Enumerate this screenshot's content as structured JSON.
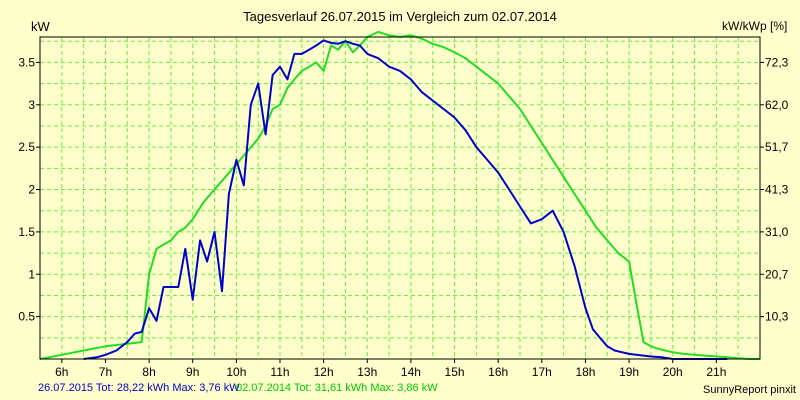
{
  "header": {
    "title": "Tagesverlauf 26.07.2015 im Vergleich zum 02.07.2014",
    "y_left_unit": "kW",
    "y_right_unit": "kW/kWp [%]"
  },
  "footer": {
    "series1_summary": "26.07.2015 Tot: 28,22 kWh Max: 3,76 kW",
    "series2_summary": "02.07.2014 Tot: 31,61 kWh Max: 3,86 kW",
    "brand": "SunnyReport pinxit"
  },
  "colors": {
    "background": "#ffffcc",
    "grid": "#66ee44",
    "series1": "#0000cc",
    "series2": "#22dd22"
  },
  "chart_data": {
    "type": "line",
    "title": "Tagesverlauf 26.07.2015 im Vergleich zum 02.07.2014",
    "ylabel": "kW",
    "y2label": "kW/kWp [%]",
    "xlim": [
      5.5,
      22.0
    ],
    "ylim": [
      0,
      3.8
    ],
    "x_ticks": [
      6,
      7,
      8,
      9,
      10,
      11,
      12,
      13,
      14,
      15,
      16,
      17,
      18,
      19,
      20,
      21
    ],
    "x_tick_labels": [
      "6h",
      "7h",
      "8h",
      "9h",
      "10h",
      "11h",
      "12h",
      "13h",
      "14h",
      "15h",
      "16h",
      "17h",
      "18h",
      "19h",
      "20h",
      "21h"
    ],
    "y_ticks": [
      0.5,
      1,
      1.5,
      2,
      2.5,
      3,
      3.5
    ],
    "y_tick_labels": [
      "0.5",
      "1",
      "1.5",
      "2",
      "2.5",
      "3",
      "3.5"
    ],
    "y2_ticks": [
      0.5,
      1,
      1.5,
      2,
      2.5,
      3,
      3.5
    ],
    "y2_tick_labels": [
      "10,3",
      "20,7",
      "31,0",
      "41,3",
      "51,7",
      "62,0",
      "72,3"
    ],
    "grid": true,
    "series": [
      {
        "name": "26.07.2015",
        "x": [
          6.5,
          6.8,
          7.0,
          7.25,
          7.5,
          7.67,
          7.83,
          8.0,
          8.17,
          8.33,
          8.5,
          8.67,
          8.83,
          9.0,
          9.17,
          9.33,
          9.5,
          9.67,
          9.83,
          10.0,
          10.17,
          10.33,
          10.5,
          10.67,
          10.83,
          11.0,
          11.17,
          11.33,
          11.5,
          11.67,
          11.83,
          12.0,
          12.17,
          12.33,
          12.5,
          12.67,
          12.83,
          13.0,
          13.25,
          13.5,
          13.75,
          14.0,
          14.25,
          14.5,
          14.75,
          15.0,
          15.25,
          15.5,
          15.75,
          16.0,
          16.25,
          16.5,
          16.75,
          17.0,
          17.25,
          17.5,
          17.75,
          18.0,
          18.17,
          18.33,
          18.5,
          18.67,
          18.83,
          19.0,
          19.17,
          19.33,
          19.5,
          19.75,
          20.0,
          20.25,
          20.5,
          20.75,
          21.0,
          21.25
        ],
        "y": [
          0.0,
          0.02,
          0.05,
          0.1,
          0.2,
          0.3,
          0.32,
          0.6,
          0.45,
          0.85,
          0.85,
          0.85,
          1.3,
          0.7,
          1.4,
          1.15,
          1.5,
          0.8,
          1.95,
          2.35,
          2.05,
          3.0,
          3.25,
          2.65,
          3.35,
          3.45,
          3.3,
          3.6,
          3.6,
          3.65,
          3.7,
          3.76,
          3.73,
          3.72,
          3.75,
          3.72,
          3.7,
          3.6,
          3.55,
          3.45,
          3.4,
          3.3,
          3.15,
          3.05,
          2.95,
          2.85,
          2.7,
          2.5,
          2.35,
          2.2,
          2.0,
          1.8,
          1.6,
          1.65,
          1.75,
          1.5,
          1.1,
          0.6,
          0.35,
          0.25,
          0.15,
          0.1,
          0.08,
          0.06,
          0.05,
          0.04,
          0.03,
          0.02,
          0.0,
          0.0,
          0.0,
          0.0,
          0.0,
          0.0
        ]
      },
      {
        "name": "02.07.2014",
        "x": [
          5.5,
          6.0,
          6.5,
          7.0,
          7.5,
          7.83,
          8.0,
          8.17,
          8.33,
          8.5,
          8.67,
          8.83,
          9.0,
          9.25,
          9.5,
          9.75,
          10.0,
          10.25,
          10.5,
          10.67,
          10.83,
          11.0,
          11.17,
          11.33,
          11.5,
          11.67,
          11.83,
          12.0,
          12.17,
          12.33,
          12.5,
          12.67,
          12.83,
          13.0,
          13.25,
          13.5,
          13.75,
          14.0,
          14.25,
          14.5,
          14.75,
          15.0,
          15.25,
          15.5,
          15.75,
          16.0,
          16.25,
          16.5,
          16.75,
          17.0,
          17.25,
          17.5,
          17.75,
          18.0,
          18.25,
          18.5,
          18.75,
          19.0,
          19.17,
          19.33,
          19.5,
          19.67,
          19.83,
          20.0,
          20.25,
          20.5,
          20.75,
          21.0,
          21.25,
          21.5,
          21.75,
          22.0
        ],
        "y": [
          0.0,
          0.05,
          0.1,
          0.15,
          0.18,
          0.2,
          1.0,
          1.3,
          1.35,
          1.4,
          1.5,
          1.55,
          1.65,
          1.85,
          2.0,
          2.15,
          2.3,
          2.45,
          2.6,
          2.75,
          2.95,
          3.0,
          3.2,
          3.3,
          3.4,
          3.45,
          3.5,
          3.4,
          3.7,
          3.65,
          3.75,
          3.62,
          3.7,
          3.8,
          3.86,
          3.82,
          3.8,
          3.82,
          3.78,
          3.72,
          3.68,
          3.62,
          3.55,
          3.45,
          3.35,
          3.25,
          3.1,
          2.95,
          2.75,
          2.55,
          2.35,
          2.15,
          1.95,
          1.75,
          1.55,
          1.4,
          1.25,
          1.15,
          0.65,
          0.2,
          0.15,
          0.12,
          0.1,
          0.08,
          0.06,
          0.05,
          0.04,
          0.03,
          0.02,
          0.01,
          0.0,
          0.0
        ]
      }
    ]
  }
}
